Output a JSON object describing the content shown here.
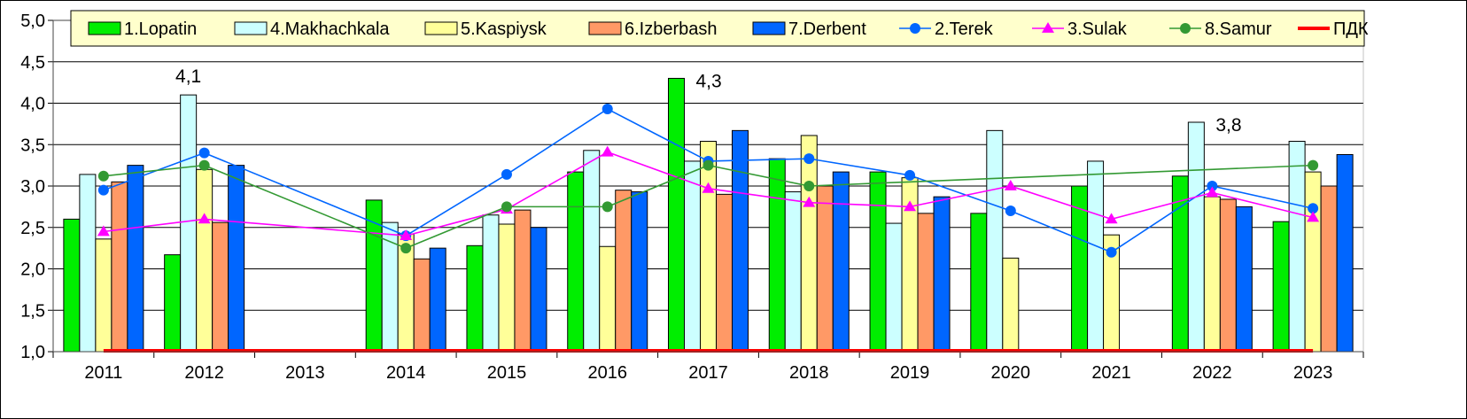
{
  "chart_data": {
    "type": "bar",
    "categories": [
      "2011",
      "2012",
      "2013",
      "2014",
      "2015",
      "2016",
      "2017",
      "2018",
      "2019",
      "2020",
      "2021",
      "2022",
      "2023"
    ],
    "ylim": [
      1.0,
      5.0
    ],
    "yticks": [
      "1,0",
      "1,5",
      "2,0",
      "2,5",
      "3,0",
      "3,5",
      "4,0",
      "4,5",
      "5,0"
    ],
    "ytick_values": [
      1.0,
      1.5,
      2.0,
      2.5,
      3.0,
      3.5,
      4.0,
      4.5,
      5.0
    ],
    "grid": true,
    "legend_position": "top",
    "bar_series": [
      {
        "name": "1.Lopatin",
        "color": "#00ee00",
        "values": [
          2.6,
          2.17,
          null,
          2.83,
          2.28,
          3.17,
          4.3,
          3.33,
          3.17,
          2.67,
          3.0,
          3.12,
          2.57
        ]
      },
      {
        "name": "4.Makhachkala",
        "color": "#ccffff",
        "values": [
          3.14,
          4.1,
          null,
          2.56,
          2.65,
          3.43,
          3.3,
          2.93,
          2.55,
          3.67,
          3.3,
          3.77,
          3.54
        ]
      },
      {
        "name": "5.Kaspiysk",
        "color": "#ffff99",
        "values": [
          2.36,
          3.2,
          null,
          2.42,
          2.54,
          2.27,
          3.54,
          3.61,
          3.1,
          2.13,
          2.41,
          2.87,
          3.17
        ]
      },
      {
        "name": "6.Izberbash",
        "color": "#ff9966",
        "values": [
          3.05,
          2.56,
          null,
          2.12,
          2.71,
          2.95,
          2.9,
          3.0,
          2.67,
          null,
          null,
          2.84,
          3.0
        ]
      },
      {
        "name": "7.Derbent",
        "color": "#0066ff",
        "values": [
          3.25,
          3.25,
          null,
          2.25,
          2.5,
          2.93,
          3.67,
          3.17,
          2.87,
          null,
          null,
          2.75,
          3.38
        ]
      }
    ],
    "line_series": [
      {
        "name": "2.Terek",
        "color": "#0066ff",
        "marker": "circle",
        "values": [
          2.95,
          3.4,
          null,
          2.4,
          3.14,
          3.93,
          3.3,
          3.33,
          3.13,
          2.7,
          2.2,
          3.0,
          2.73
        ]
      },
      {
        "name": "3.Sulak",
        "color": "#ff00ff",
        "marker": "triangle",
        "values": [
          2.45,
          2.6,
          null,
          2.4,
          2.72,
          3.41,
          2.97,
          2.8,
          2.75,
          3.0,
          2.6,
          2.92,
          2.62
        ]
      },
      {
        "name": "8.Samur",
        "color": "#339933",
        "marker": "circle",
        "values": [
          3.12,
          3.25,
          null,
          2.25,
          2.75,
          2.75,
          3.25,
          3.0,
          null,
          null,
          null,
          null,
          3.25
        ]
      }
    ],
    "reference_line": {
      "name": "ПДК",
      "color": "#ff0000",
      "value": 1.0
    },
    "annotations": [
      {
        "text": "4,1",
        "category": "2012",
        "series": "4.Makhachkala",
        "value": 4.1
      },
      {
        "text": "4,3",
        "category": "2017",
        "series": "1.Lopatin",
        "value": 4.3
      },
      {
        "text": "3,8",
        "category": "2022",
        "series": "4.Makhachkala",
        "value": 3.77
      }
    ]
  }
}
